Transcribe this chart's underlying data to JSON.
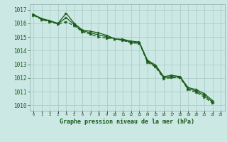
{
  "title": "Graphe pression niveau de la mer (hPa)",
  "background_color": "#cce8e4",
  "grid_color": "#b0c8c4",
  "line_color": "#1a5c1a",
  "y_ticks": [
    1010,
    1011,
    1012,
    1013,
    1014,
    1015,
    1016,
    1017
  ],
  "ylim": [
    1009.6,
    1017.4
  ],
  "xlim": [
    -0.5,
    23.5
  ],
  "line1": [
    1016.65,
    1016.35,
    1016.2,
    1016.0,
    1016.75,
    1016.0,
    1015.52,
    1015.42,
    1015.3,
    1015.12,
    1014.87,
    1014.83,
    1014.7,
    1014.63,
    1013.3,
    1012.95,
    1012.1,
    1012.2,
    1012.1,
    1011.3,
    1011.15,
    1010.85,
    1010.35
  ],
  "line2": [
    1016.58,
    1016.28,
    1016.12,
    1015.96,
    1016.12,
    1015.82,
    1015.38,
    1015.2,
    1015.0,
    1014.92,
    1014.87,
    1014.75,
    1014.55,
    1014.55,
    1013.15,
    1012.8,
    1011.95,
    1012.02,
    1012.02,
    1011.15,
    1010.95,
    1010.6,
    1010.15
  ],
  "line3": [
    1016.62,
    1016.32,
    1016.16,
    1015.98,
    1016.42,
    1015.91,
    1015.45,
    1015.31,
    1015.15,
    1015.02,
    1014.87,
    1014.79,
    1014.62,
    1014.59,
    1013.22,
    1012.88,
    1012.02,
    1012.11,
    1012.06,
    1011.22,
    1011.05,
    1010.72,
    1010.25
  ],
  "x_hours": [
    0,
    1,
    2,
    3,
    4,
    5,
    6,
    7,
    8,
    9,
    10,
    11,
    12,
    13,
    14,
    15,
    16,
    17,
    18,
    19,
    20,
    21,
    22,
    23
  ]
}
